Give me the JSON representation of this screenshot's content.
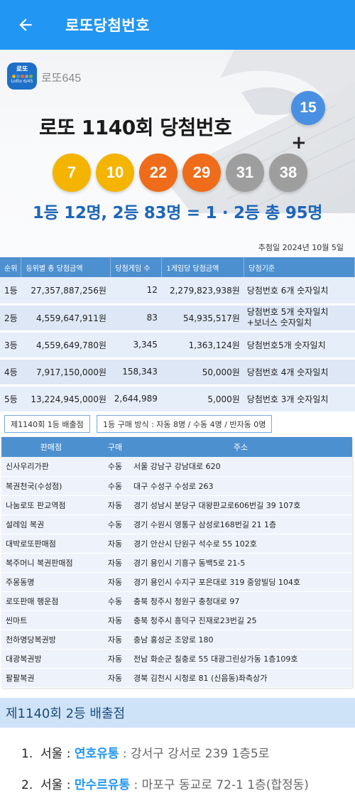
{
  "appbar": {
    "title": "로또당첨번호",
    "back_icon": "arrow-left-icon"
  },
  "banner": {
    "logo_line1": "로또",
    "logo_line2": "Lotto 6/45",
    "logo_text": "로또645",
    "headline": "로또 1140회 당첨번호",
    "numbers": [
      {
        "value": "7",
        "color": "#f4b400"
      },
      {
        "value": "10",
        "color": "#f4b400"
      },
      {
        "value": "22",
        "color": "#ef6c1a"
      },
      {
        "value": "29",
        "color": "#ef6c1a"
      },
      {
        "value": "31",
        "color": "#9e9e9e"
      },
      {
        "value": "38",
        "color": "#9e9e9e"
      }
    ],
    "plus": "+",
    "bonus": {
      "value": "15",
      "color": "#4a90e2"
    },
    "summary": "1등 12명, 2등 83명 = 1 · 2등 총 95명",
    "draw_date": "추첨일 2024년 10월 5일"
  },
  "prize_table": {
    "headers": [
      "순위",
      "등위별 총 당첨금액",
      "당첨게임 수",
      "1게임당 당첨금액",
      "당첨기준"
    ],
    "rows": [
      {
        "rank": "1등",
        "total": "27,357,887,256원",
        "games": "12",
        "per_game": "2,279,823,938원",
        "criteria": "당첨번호 6개 숫자일치",
        "criteria2": ""
      },
      {
        "rank": "2등",
        "total": "4,559,647,911원",
        "games": "83",
        "per_game": "54,935,517원",
        "criteria": "당첨번호 5개 숫자일치",
        "criteria2": "+보너스 숫자일치"
      },
      {
        "rank": "3등",
        "total": "4,559,649,780원",
        "games": "3,345",
        "per_game": "1,363,124원",
        "criteria": "당첨번호5개 숫자일치",
        "criteria2": ""
      },
      {
        "rank": "4등",
        "total": "7,917,150,000원",
        "games": "158,343",
        "per_game": "50,000원",
        "criteria": "당첨번호 4개 숫자일치",
        "criteria2": ""
      },
      {
        "rank": "5등",
        "total": "13,224,945,000원",
        "games": "2,644,989",
        "per_game": "5,000원",
        "criteria": "당첨번호 3개 숫자일치",
        "criteria2": ""
      }
    ]
  },
  "tags": {
    "first_stores": "제1140회 1등 배출점",
    "method": "1등 구매 방식 : 자동 8명 / 수동 4명 / 반자동 0명"
  },
  "stores_table": {
    "headers": [
      "판매점",
      "구매",
      "주소"
    ],
    "rows": [
      {
        "name": "신사우리가판",
        "type": "수동",
        "address": "서울 강남구 강남대로 620"
      },
      {
        "name": "복권천국(수성점)",
        "type": "수동",
        "address": "대구 수성구 수성로 263"
      },
      {
        "name": "나눔로또 판교역점",
        "type": "자동",
        "address": "경기 성남시 분당구 대왕판교로606번길 39 107호"
      },
      {
        "name": "설레임 복권",
        "type": "수동",
        "address": "경기 수원시 영통구 삼성로168번길 21 1층"
      },
      {
        "name": "대박로또판매점",
        "type": "자동",
        "address": "경기 안산시 단원구 석수로 55 102호"
      },
      {
        "name": "복주머니 복권판매점",
        "type": "자동",
        "address": "경기 용인시 기흥구 동백5로 21-5"
      },
      {
        "name": "주몽동명",
        "type": "자동",
        "address": "경기 용인시 수지구 포은대로 319 중앙빌딩 104호"
      },
      {
        "name": "로또판매 행운점",
        "type": "수동",
        "address": "충북 청주시 청원구 충청대로 97"
      },
      {
        "name": "씬마트",
        "type": "자동",
        "address": "충북 청주시 흥덕구 진재로23번길 25"
      },
      {
        "name": "천하명당복권방",
        "type": "자동",
        "address": "충남 홍성군 조양로 180"
      },
      {
        "name": "대광복권방",
        "type": "자동",
        "address": "전남 화순군 칠충로 55 대광그린상가동 1층109호"
      },
      {
        "name": "팔팔복권",
        "type": "자동",
        "address": "경북 김천시 시청로 81 (신음동)좌측상가"
      }
    ]
  },
  "second": {
    "title": "제1140회 2등 배출점",
    "items": [
      {
        "index": "1.",
        "region": "서울 :",
        "name": "연호유통",
        "address": ": 강서구 강서로 239 1층5로"
      },
      {
        "index": "2.",
        "region": "서울 :",
        "name": "만수르유통",
        "address": ": 마포구 동교로 72-1 1층(합정동)"
      }
    ]
  }
}
